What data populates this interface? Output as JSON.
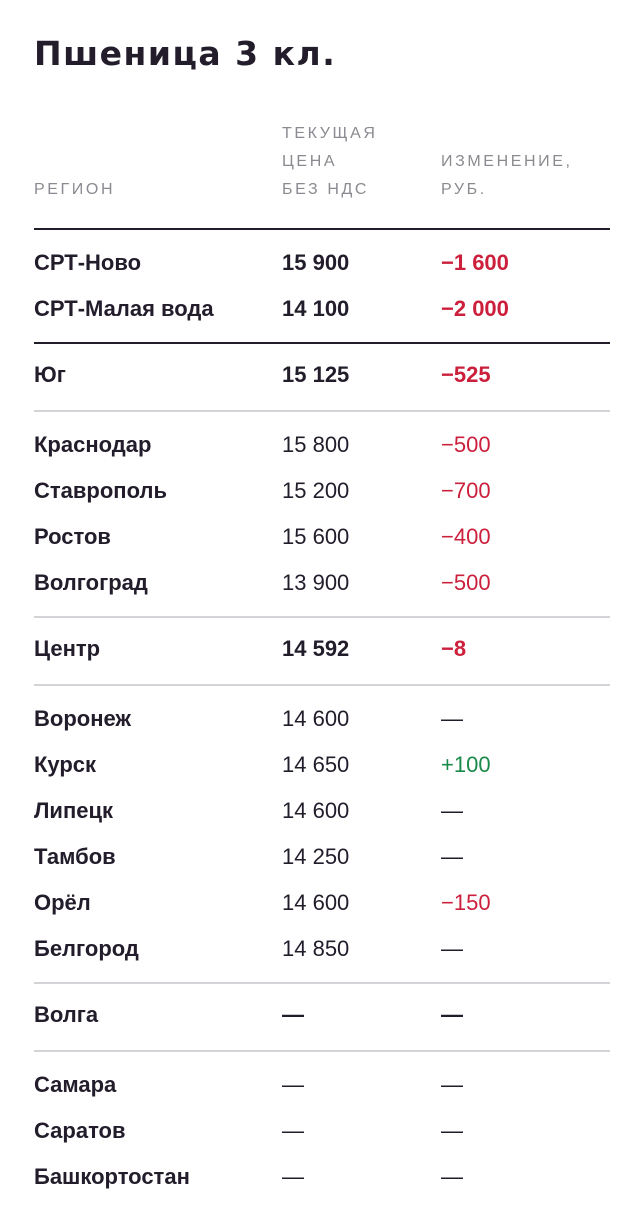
{
  "title": "Пшеница 3 кл.",
  "header": {
    "region": "РЕГИОН",
    "price_lines": [
      "ТЕКУЩАЯ",
      "ЦЕНА",
      "БЕЗ НДС"
    ],
    "change_lines": [
      "ИЗМЕНЕНИЕ,",
      "РУБ."
    ]
  },
  "colors": {
    "negative": "#cc1f3c",
    "positive": "#1a8a4a",
    "text": "#221c2b",
    "muted": "#8c8a90"
  },
  "groups": [
    {
      "rows": [
        {
          "region": "СРТ-Ново",
          "price": "15 900",
          "change": "−1 600",
          "bold": true,
          "trend": "neg"
        },
        {
          "region": "СРТ-Малая вода",
          "price": "14 100",
          "change": "−2 000",
          "bold": true,
          "trend": "neg"
        }
      ]
    },
    {
      "rows": [
        {
          "region": "Юг",
          "price": "15 125",
          "change": "−525",
          "bold": true,
          "trend": "neg"
        }
      ]
    },
    {
      "rows": [
        {
          "region": "Краснодар",
          "price": "15 800",
          "change": "−500",
          "bold": false,
          "trend": "neg"
        },
        {
          "region": "Ставрополь",
          "price": "15 200",
          "change": "−700",
          "bold": false,
          "trend": "neg"
        },
        {
          "region": "Ростов",
          "price": "15 600",
          "change": "−400",
          "bold": false,
          "trend": "neg"
        },
        {
          "region": "Волгоград",
          "price": "13 900",
          "change": "−500",
          "bold": false,
          "trend": "neg"
        }
      ]
    },
    {
      "rows": [
        {
          "region": "Центр",
          "price": "14 592",
          "change": "−8",
          "bold": true,
          "trend": "neg"
        }
      ]
    },
    {
      "rows": [
        {
          "region": "Воронеж",
          "price": "14 600",
          "change": "—",
          "bold": false,
          "trend": "none"
        },
        {
          "region": "Курск",
          "price": "14 650",
          "change": "+100",
          "bold": false,
          "trend": "pos"
        },
        {
          "region": "Липецк",
          "price": "14 600",
          "change": "—",
          "bold": false,
          "trend": "none"
        },
        {
          "region": "Тамбов",
          "price": "14 250",
          "change": "—",
          "bold": false,
          "trend": "none"
        },
        {
          "region": "Орёл",
          "price": "14 600",
          "change": "−150",
          "bold": false,
          "trend": "neg"
        },
        {
          "region": "Белгород",
          "price": "14 850",
          "change": "—",
          "bold": false,
          "trend": "none"
        }
      ]
    },
    {
      "rows": [
        {
          "region": "Волга",
          "price": "—",
          "change": "—",
          "bold": true,
          "trend": "none"
        }
      ]
    },
    {
      "rows": [
        {
          "region": "Самара",
          "price": "—",
          "change": "—",
          "bold": false,
          "trend": "none"
        },
        {
          "region": "Саратов",
          "price": "—",
          "change": "—",
          "bold": false,
          "trend": "none"
        },
        {
          "region": "Башкортостан",
          "price": "—",
          "change": "—",
          "bold": false,
          "trend": "none"
        }
      ]
    }
  ]
}
